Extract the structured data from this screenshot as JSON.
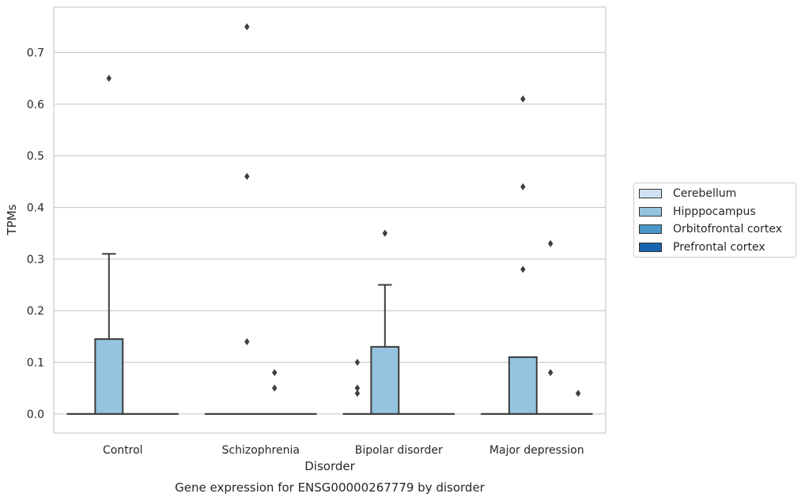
{
  "chart_data": {
    "type": "box",
    "title": "Gene expression for ENSG00000267779 by disorder",
    "xlabel": "Disorder",
    "ylabel": "TPMs",
    "ylim": [
      -0.037,
      0.788
    ],
    "yticks": [
      0.0,
      0.1,
      0.2,
      0.3,
      0.4,
      0.5,
      0.6,
      0.7
    ],
    "ytick_labels": [
      "0.0",
      "0.1",
      "0.2",
      "0.3",
      "0.4",
      "0.5",
      "0.6",
      "0.7"
    ],
    "grid": true,
    "legend_position": "right",
    "categories": [
      "Control",
      "Schizophrenia",
      "Bipolar disorder",
      "Major depression"
    ],
    "series": [
      {
        "name": "Cerebellum",
        "color": "#d0e1f2",
        "boxes": [
          {
            "q1": 0,
            "median": 0,
            "q3": 0,
            "whisker_low": 0,
            "whisker_high": 0,
            "outliers": []
          },
          {
            "q1": 0,
            "median": 0,
            "q3": 0,
            "whisker_low": 0,
            "whisker_high": 0,
            "outliers": []
          },
          {
            "q1": 0,
            "median": 0,
            "q3": 0,
            "whisker_low": 0,
            "whisker_high": 0,
            "outliers": []
          },
          {
            "q1": 0,
            "median": 0,
            "q3": 0,
            "whisker_low": 0,
            "whisker_high": 0,
            "outliers": []
          }
        ]
      },
      {
        "name": "Hipppocampus",
        "color": "#94c4df",
        "boxes": [
          {
            "q1": 0,
            "median": 0,
            "q3": 0.145,
            "whisker_low": 0,
            "whisker_high": 0.31,
            "outliers": [
              0.65
            ]
          },
          {
            "q1": 0,
            "median": 0,
            "q3": 0,
            "whisker_low": 0,
            "whisker_high": 0,
            "outliers": [
              0.75,
              0.46,
              0.14
            ]
          },
          {
            "q1": 0,
            "median": 0,
            "q3": 0.13,
            "whisker_low": 0,
            "whisker_high": 0.25,
            "outliers": [
              0.35
            ]
          },
          {
            "q1": 0,
            "median": 0,
            "q3": 0.11,
            "whisker_low": 0,
            "whisker_high": 0.11,
            "outliers": [
              0.61,
              0.44,
              0.28
            ]
          }
        ]
      },
      {
        "name": "Orbitofrontal cortex",
        "color": "#4a98c9",
        "boxes": [
          {
            "q1": 0,
            "median": 0,
            "q3": 0,
            "whisker_low": 0,
            "whisker_high": 0,
            "outliers": []
          },
          {
            "q1": 0,
            "median": 0,
            "q3": 0,
            "whisker_low": 0,
            "whisker_high": 0,
            "outliers": [
              0.08,
              0.05
            ]
          },
          {
            "q1": 0,
            "median": 0,
            "q3": 0,
            "whisker_low": 0,
            "whisker_high": 0,
            "outliers": []
          },
          {
            "q1": 0,
            "median": 0,
            "q3": 0,
            "whisker_low": 0,
            "whisker_high": 0,
            "outliers": [
              0.33,
              0.08
            ]
          }
        ]
      },
      {
        "name": "Prefrontal cortex",
        "color": "#1764ab",
        "boxes": [
          {
            "q1": 0,
            "median": 0,
            "q3": 0,
            "whisker_low": 0,
            "whisker_high": 0,
            "outliers": []
          },
          {
            "q1": 0,
            "median": 0,
            "q3": 0,
            "whisker_low": 0,
            "whisker_high": 0,
            "outliers": []
          },
          {
            "q1": 0,
            "median": 0,
            "q3": 0,
            "whisker_low": 0,
            "whisker_high": 0,
            "outliers": []
          },
          {
            "q1": 0,
            "median": 0,
            "q3": 0,
            "whisker_low": 0,
            "whisker_high": 0,
            "outliers": [
              0.04
            ]
          }
        ]
      }
    ],
    "extra_outliers": [
      {
        "category_index": 2,
        "offset_series": "Cerebellum",
        "values": [
          0.1,
          0.05,
          0.04
        ]
      }
    ]
  }
}
